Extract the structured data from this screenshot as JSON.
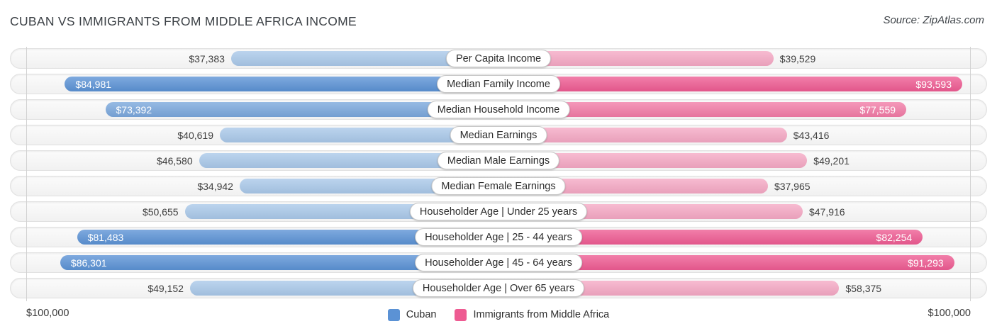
{
  "header": {
    "title": "CUBAN VS IMMIGRANTS FROM MIDDLE AFRICA INCOME",
    "source": "Source: ZipAtlas.com"
  },
  "legend": {
    "items": [
      {
        "label": "Cuban",
        "color": "#5b92d5"
      },
      {
        "label": "Immigrants from Middle Africa",
        "color": "#ee5b92"
      }
    ]
  },
  "axis": {
    "max_value": 100000,
    "left_label": "$100,000",
    "right_label": "$100,000"
  },
  "palette": {
    "cuban": {
      "light": "#a9c8e9",
      "medium": "#7aa7dc",
      "dark": "#5b92d5"
    },
    "immigrants": {
      "light": "#f5a8c4",
      "medium": "#f27ba6",
      "dark": "#ee5b92"
    }
  },
  "chart_data": {
    "type": "bar",
    "variant": "diverging-horizontal-paired",
    "title": "Cuban vs Immigrants from Middle Africa Income",
    "xlim": [
      0,
      100000
    ],
    "legend_position": "bottom-center",
    "categories": [
      "Per Capita Income",
      "Median Family Income",
      "Median Household Income",
      "Median Earnings",
      "Median Male Earnings",
      "Median Female Earnings",
      "Householder Age | Under 25 years",
      "Householder Age | 25 - 44 years",
      "Householder Age | 45 - 64 years",
      "Householder Age | Over 65 years"
    ],
    "series": [
      {
        "name": "Cuban",
        "values": [
          37383,
          84981,
          73392,
          40619,
          46580,
          34942,
          50655,
          81483,
          86301,
          49152
        ]
      },
      {
        "name": "Immigrants from Middle Africa",
        "values": [
          39529,
          93593,
          77559,
          43416,
          49201,
          37965,
          47916,
          82254,
          91293,
          58375
        ]
      }
    ],
    "rows": [
      {
        "category": "Per Capita Income",
        "cuban": {
          "value": 37383,
          "label": "$37,383",
          "tier": "light",
          "label_position": "outside"
        },
        "immigrants": {
          "value": 39529,
          "label": "$39,529",
          "tier": "light",
          "label_position": "outside"
        }
      },
      {
        "category": "Median Family Income",
        "cuban": {
          "value": 84981,
          "label": "$84,981",
          "tier": "dark",
          "label_position": "inside"
        },
        "immigrants": {
          "value": 93593,
          "label": "$93,593",
          "tier": "dark",
          "label_position": "inside"
        }
      },
      {
        "category": "Median Household Income",
        "cuban": {
          "value": 73392,
          "label": "$73,392",
          "tier": "medium",
          "label_position": "inside"
        },
        "immigrants": {
          "value": 77559,
          "label": "$77,559",
          "tier": "medium",
          "label_position": "inside"
        }
      },
      {
        "category": "Median Earnings",
        "cuban": {
          "value": 40619,
          "label": "$40,619",
          "tier": "light",
          "label_position": "outside"
        },
        "immigrants": {
          "value": 43416,
          "label": "$43,416",
          "tier": "light",
          "label_position": "outside"
        }
      },
      {
        "category": "Median Male Earnings",
        "cuban": {
          "value": 46580,
          "label": "$46,580",
          "tier": "light",
          "label_position": "outside"
        },
        "immigrants": {
          "value": 49201,
          "label": "$49,201",
          "tier": "light",
          "label_position": "outside"
        }
      },
      {
        "category": "Median Female Earnings",
        "cuban": {
          "value": 34942,
          "label": "$34,942",
          "tier": "light",
          "label_position": "outside"
        },
        "immigrants": {
          "value": 37965,
          "label": "$37,965",
          "tier": "light",
          "label_position": "outside"
        }
      },
      {
        "category": "Householder Age | Under 25 years",
        "cuban": {
          "value": 50655,
          "label": "$50,655",
          "tier": "light",
          "label_position": "outside"
        },
        "immigrants": {
          "value": 47916,
          "label": "$47,916",
          "tier": "light",
          "label_position": "outside"
        }
      },
      {
        "category": "Householder Age | 25 - 44 years",
        "cuban": {
          "value": 81483,
          "label": "$81,483",
          "tier": "dark",
          "label_position": "inside"
        },
        "immigrants": {
          "value": 82254,
          "label": "$82,254",
          "tier": "dark",
          "label_position": "inside"
        }
      },
      {
        "category": "Householder Age | 45 - 64 years",
        "cuban": {
          "value": 86301,
          "label": "$86,301",
          "tier": "dark",
          "label_position": "inside"
        },
        "immigrants": {
          "value": 91293,
          "label": "$91,293",
          "tier": "dark",
          "label_position": "inside"
        }
      },
      {
        "category": "Householder Age | Over 65 years",
        "cuban": {
          "value": 49152,
          "label": "$49,152",
          "tier": "light",
          "label_position": "outside"
        },
        "immigrants": {
          "value": 58375,
          "label": "$58,375",
          "tier": "light",
          "label_position": "outside"
        }
      }
    ]
  }
}
